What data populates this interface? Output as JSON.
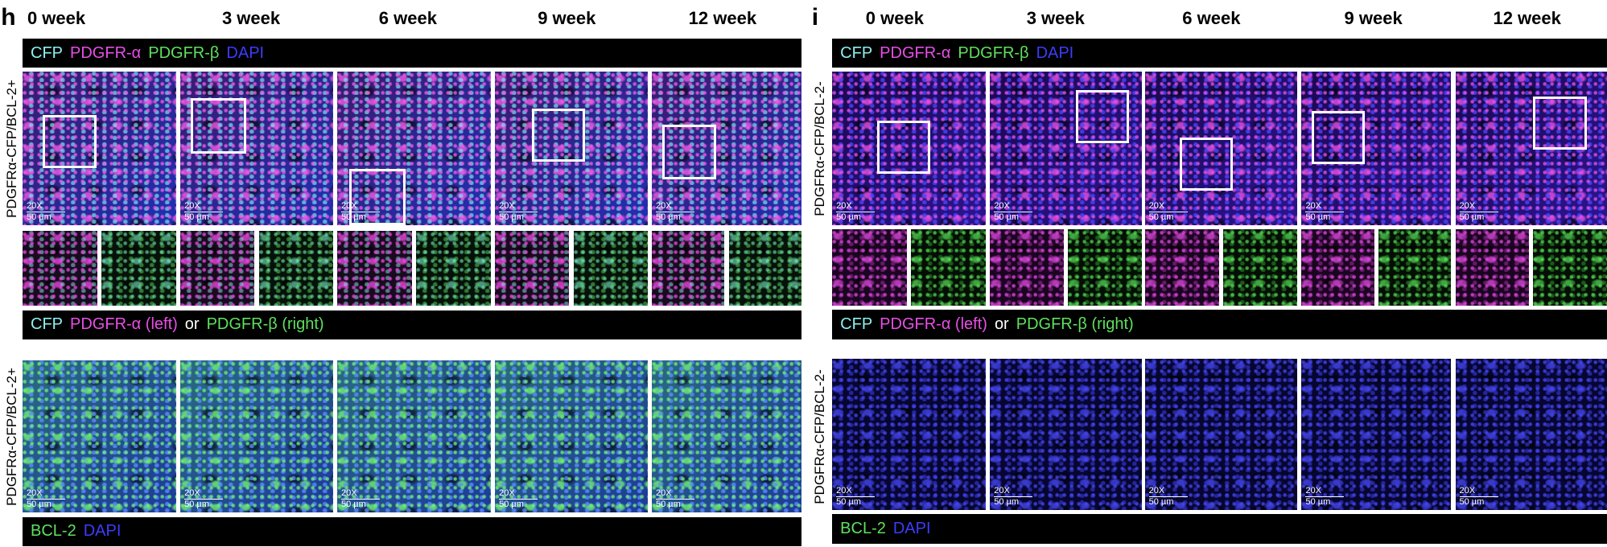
{
  "panels": [
    {
      "letter": "h",
      "weeks": [
        "0 week",
        "3 week",
        "6 week",
        "9 week",
        "12 week"
      ],
      "row_labels": [
        "PDGFRα-CFP/BCL-2+",
        "PDGFRα-CFP/BCL-2+"
      ],
      "legend_top": [
        {
          "text": "CFP",
          "color": "#8ef0f0"
        },
        {
          "text": "PDGFR-α",
          "color": "#e84ee8"
        },
        {
          "text": "PDGFR-β",
          "color": "#5ee05e"
        },
        {
          "text": "DAPI",
          "color": "#3c3cff"
        }
      ],
      "legend_inset": [
        {
          "text": "CFP",
          "color": "#8ef0f0"
        },
        {
          "text": "PDGFR-α (left)",
          "color": "#e84ee8"
        },
        {
          "text": "or",
          "color": "#ffffff"
        },
        {
          "text": "PDGFR-β (right)",
          "color": "#5ee05e"
        }
      ],
      "legend_bcl2": [
        {
          "text": "BCL-2",
          "color": "#5ee05e"
        },
        {
          "text": "DAPI",
          "color": "#3c3cff"
        }
      ],
      "magnification": "20X",
      "scale_bar": "50 µm"
    },
    {
      "letter": "i",
      "weeks": [
        "0 week",
        "3 week",
        "6 week",
        "9 week",
        "12 week"
      ],
      "row_labels": [
        "PDGFRα-CFP/BCL-2-",
        "PDGFRα-CFP/BCL-2-"
      ],
      "legend_top": [
        {
          "text": "CFP",
          "color": "#8ef0f0"
        },
        {
          "text": "PDGFR-α",
          "color": "#e84ee8"
        },
        {
          "text": "PDGFR-β",
          "color": "#5ee05e"
        },
        {
          "text": "DAPI",
          "color": "#3c3cff"
        }
      ],
      "legend_inset": [
        {
          "text": "CFP",
          "color": "#8ef0f0"
        },
        {
          "text": "PDGFR-α (left)",
          "color": "#e84ee8"
        },
        {
          "text": "or",
          "color": "#ffffff"
        },
        {
          "text": "PDGFR-β (right)",
          "color": "#5ee05e"
        }
      ],
      "legend_bcl2": [
        {
          "text": "BCL-2",
          "color": "#5ee05e"
        },
        {
          "text": "DAPI",
          "color": "#3c3cff"
        }
      ],
      "magnification": "20X",
      "scale_bar": "50 µm"
    }
  ]
}
